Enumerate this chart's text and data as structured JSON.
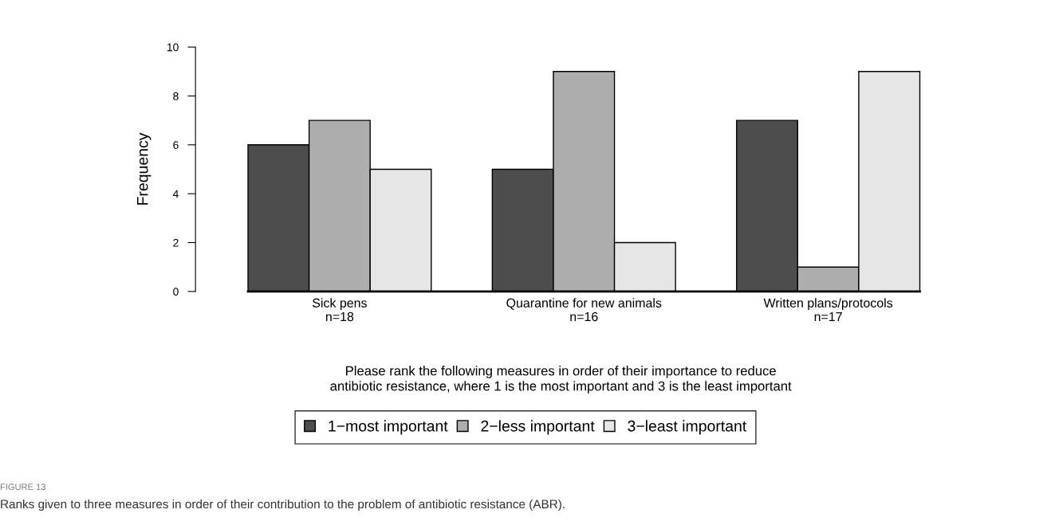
{
  "chart_data": {
    "type": "bar",
    "categories": [
      "Sick pens\nn=18",
      "Quarantine for new animals\nn=16",
      "Written plans/protocols\nn=17"
    ],
    "series": [
      {
        "name": "1−most important",
        "color": "#4d4d4d",
        "values": [
          6,
          5,
          7
        ]
      },
      {
        "name": "2−less important",
        "color": "#aeaeae",
        "values": [
          7,
          9,
          1
        ]
      },
      {
        "name": "3−least important",
        "color": "#e6e6e6",
        "values": [
          5,
          2,
          9
        ]
      }
    ],
    "ylabel": "Frequency",
    "xlabel": "Please rank the following measures in order of their importance to reduce\nantibiotic resistance, where 1 is the most important and 3 is the least important",
    "ylim": [
      0,
      10
    ],
    "yticks": [
      0,
      2,
      4,
      6,
      8,
      10
    ],
    "legend": "bottom",
    "grid": false,
    "annotations": [
      "FIGURE 13",
      "Ranks given to three measures in order of their contribution to the problem of antibiotic resistance (ABR)."
    ]
  }
}
